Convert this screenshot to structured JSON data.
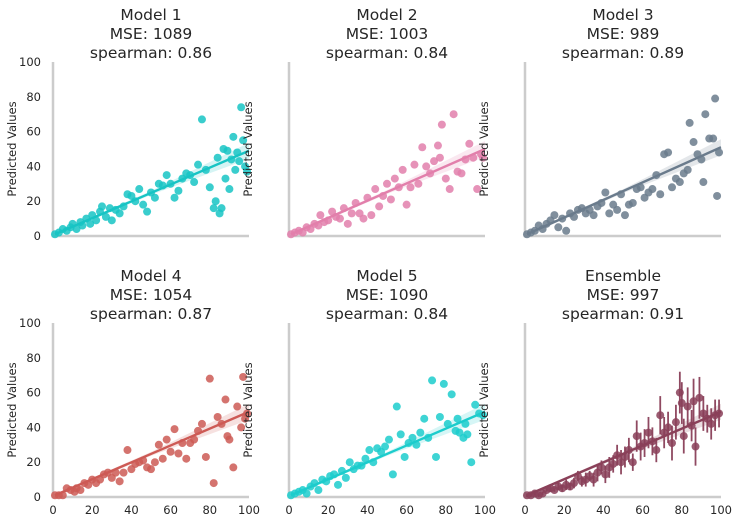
{
  "chart_data": [
    {
      "type": "scatter",
      "title": [
        "Model 1",
        "MSE: 1089",
        "spearman: 0.86"
      ],
      "ylabel": "Predicted Values",
      "xlabel": "",
      "xlim": [
        0,
        100
      ],
      "ylim": [
        0,
        100
      ],
      "yticks": [
        "0",
        "20",
        "40",
        "60",
        "80",
        "100"
      ],
      "xticks": [],
      "show_yticks": true,
      "show_xticks": false,
      "grid": false,
      "color": "#17c4c4",
      "regression": {
        "x": [
          1,
          100
        ],
        "y": [
          1,
          49
        ]
      },
      "points": [
        [
          1,
          1
        ],
        [
          3,
          2
        ],
        [
          5,
          4
        ],
        [
          7,
          3
        ],
        [
          9,
          5
        ],
        [
          10,
          7
        ],
        [
          12,
          4
        ],
        [
          14,
          8
        ],
        [
          15,
          6
        ],
        [
          17,
          10
        ],
        [
          19,
          7
        ],
        [
          20,
          12
        ],
        [
          22,
          9
        ],
        [
          24,
          14
        ],
        [
          25,
          17
        ],
        [
          27,
          11
        ],
        [
          29,
          16
        ],
        [
          30,
          9
        ],
        [
          32,
          15
        ],
        [
          34,
          13
        ],
        [
          36,
          17
        ],
        [
          38,
          24
        ],
        [
          40,
          23
        ],
        [
          42,
          20
        ],
        [
          44,
          27
        ],
        [
          46,
          18
        ],
        [
          48,
          14
        ],
        [
          50,
          25
        ],
        [
          52,
          22
        ],
        [
          54,
          30
        ],
        [
          56,
          29
        ],
        [
          58,
          35
        ],
        [
          60,
          30
        ],
        [
          62,
          22
        ],
        [
          64,
          26
        ],
        [
          66,
          33
        ],
        [
          68,
          36
        ],
        [
          70,
          35
        ],
        [
          72,
          31
        ],
        [
          74,
          41
        ],
        [
          76,
          67
        ],
        [
          78,
          38
        ],
        [
          80,
          28
        ],
        [
          82,
          16
        ],
        [
          83,
          20
        ],
        [
          84,
          45
        ],
        [
          85,
          13
        ],
        [
          86,
          16
        ],
        [
          87,
          50
        ],
        [
          88,
          33
        ],
        [
          89,
          49
        ],
        [
          90,
          27
        ],
        [
          91,
          44
        ],
        [
          92,
          57
        ],
        [
          93,
          38
        ],
        [
          94,
          48
        ],
        [
          95,
          43
        ],
        [
          96,
          74
        ],
        [
          97,
          55
        ],
        [
          98,
          40
        ],
        [
          99,
          37
        ]
      ]
    },
    {
      "type": "scatter",
      "title": [
        "Model 2",
        "MSE: 1003",
        "spearman: 0.84"
      ],
      "ylabel": "Predicted Values",
      "xlabel": "",
      "xlim": [
        0,
        100
      ],
      "ylim": [
        0,
        100
      ],
      "yticks": [],
      "xticks": [],
      "show_yticks": false,
      "show_xticks": false,
      "grid": false,
      "color": "#e27fab",
      "regression": {
        "x": [
          1,
          100
        ],
        "y": [
          1,
          50
        ]
      },
      "points": [
        [
          1,
          1
        ],
        [
          3,
          2
        ],
        [
          5,
          3
        ],
        [
          7,
          2
        ],
        [
          9,
          5
        ],
        [
          11,
          4
        ],
        [
          13,
          7
        ],
        [
          15,
          6
        ],
        [
          16,
          12
        ],
        [
          18,
          8
        ],
        [
          20,
          9
        ],
        [
          22,
          14
        ],
        [
          24,
          11
        ],
        [
          26,
          10
        ],
        [
          28,
          16
        ],
        [
          30,
          7
        ],
        [
          32,
          13
        ],
        [
          34,
          19
        ],
        [
          36,
          13
        ],
        [
          38,
          10
        ],
        [
          40,
          22
        ],
        [
          42,
          12
        ],
        [
          44,
          27
        ],
        [
          46,
          17
        ],
        [
          48,
          23
        ],
        [
          50,
          30
        ],
        [
          52,
          21
        ],
        [
          54,
          33
        ],
        [
          56,
          28
        ],
        [
          58,
          38
        ],
        [
          60,
          18
        ],
        [
          62,
          28
        ],
        [
          64,
          41
        ],
        [
          66,
          30
        ],
        [
          68,
          51
        ],
        [
          70,
          40
        ],
        [
          72,
          36
        ],
        [
          74,
          43
        ],
        [
          76,
          52
        ],
        [
          77,
          45
        ],
        [
          78,
          64
        ],
        [
          80,
          33
        ],
        [
          82,
          27
        ],
        [
          84,
          70
        ],
        [
          86,
          37
        ],
        [
          88,
          36
        ],
        [
          90,
          44
        ],
        [
          92,
          53
        ],
        [
          94,
          45
        ],
        [
          96,
          27
        ],
        [
          98,
          47
        ],
        [
          99,
          45
        ]
      ]
    },
    {
      "type": "scatter",
      "title": [
        "Model 3",
        "MSE: 989",
        "spearman: 0.89"
      ],
      "ylabel": "Predicted Values",
      "xlabel": "",
      "xlim": [
        0,
        100
      ],
      "ylim": [
        0,
        100
      ],
      "yticks": [],
      "xticks": [],
      "show_yticks": false,
      "show_xticks": false,
      "grid": false,
      "color": "#6a7b8c",
      "regression": {
        "x": [
          1,
          100
        ],
        "y": [
          1,
          51
        ]
      },
      "points": [
        [
          1,
          1
        ],
        [
          3,
          2
        ],
        [
          5,
          3
        ],
        [
          7,
          6
        ],
        [
          9,
          4
        ],
        [
          11,
          7
        ],
        [
          13,
          9
        ],
        [
          15,
          12
        ],
        [
          17,
          5
        ],
        [
          19,
          10
        ],
        [
          21,
          3
        ],
        [
          23,
          13
        ],
        [
          25,
          11
        ],
        [
          27,
          15
        ],
        [
          29,
          16
        ],
        [
          31,
          13
        ],
        [
          33,
          15
        ],
        [
          35,
          12
        ],
        [
          37,
          17
        ],
        [
          39,
          19
        ],
        [
          41,
          25
        ],
        [
          43,
          13
        ],
        [
          45,
          18
        ],
        [
          47,
          15
        ],
        [
          49,
          24
        ],
        [
          51,
          12
        ],
        [
          53,
          18
        ],
        [
          55,
          19
        ],
        [
          57,
          27
        ],
        [
          59,
          28
        ],
        [
          61,
          22
        ],
        [
          63,
          25
        ],
        [
          65,
          27
        ],
        [
          67,
          35
        ],
        [
          69,
          24
        ],
        [
          71,
          47
        ],
        [
          73,
          48
        ],
        [
          75,
          28
        ],
        [
          77,
          33
        ],
        [
          79,
          31
        ],
        [
          81,
          36
        ],
        [
          83,
          38
        ],
        [
          84,
          65
        ],
        [
          86,
          54
        ],
        [
          88,
          47
        ],
        [
          90,
          44
        ],
        [
          91,
          31
        ],
        [
          92,
          70
        ],
        [
          94,
          56
        ],
        [
          96,
          56
        ],
        [
          97,
          79
        ],
        [
          98,
          23
        ],
        [
          99,
          48
        ]
      ]
    },
    {
      "type": "scatter",
      "title": [
        "Model 4",
        "MSE: 1054",
        "spearman: 0.87"
      ],
      "ylabel": "Predicted Values",
      "xlabel": "",
      "xlim": [
        0,
        100
      ],
      "ylim": [
        0,
        100
      ],
      "yticks": [
        "0",
        "20",
        "40",
        "60",
        "80",
        "100"
      ],
      "xticks": [
        "0",
        "20",
        "40",
        "60",
        "80",
        "100"
      ],
      "show_yticks": true,
      "show_xticks": true,
      "grid": false,
      "color": "#cd5a55",
      "regression": {
        "x": [
          1,
          100
        ],
        "y": [
          1,
          49
        ]
      },
      "points": [
        [
          1,
          1
        ],
        [
          3,
          1
        ],
        [
          5,
          1
        ],
        [
          7,
          5
        ],
        [
          9,
          4
        ],
        [
          11,
          3
        ],
        [
          12,
          5
        ],
        [
          14,
          4
        ],
        [
          16,
          8
        ],
        [
          18,
          7
        ],
        [
          20,
          10
        ],
        [
          22,
          8
        ],
        [
          24,
          10
        ],
        [
          26,
          13
        ],
        [
          28,
          14
        ],
        [
          30,
          11
        ],
        [
          32,
          14
        ],
        [
          34,
          9
        ],
        [
          36,
          14
        ],
        [
          38,
          27
        ],
        [
          40,
          16
        ],
        [
          42,
          19
        ],
        [
          44,
          20
        ],
        [
          46,
          21
        ],
        [
          48,
          17
        ],
        [
          50,
          16
        ],
        [
          52,
          20
        ],
        [
          54,
          30
        ],
        [
          56,
          22
        ],
        [
          58,
          33
        ],
        [
          60,
          26
        ],
        [
          62,
          39
        ],
        [
          64,
          25
        ],
        [
          66,
          31
        ],
        [
          68,
          22
        ],
        [
          70,
          31
        ],
        [
          72,
          33
        ],
        [
          74,
          38
        ],
        [
          76,
          42
        ],
        [
          78,
          23
        ],
        [
          80,
          68
        ],
        [
          82,
          8
        ],
        [
          84,
          46
        ],
        [
          86,
          42
        ],
        [
          88,
          56
        ],
        [
          89,
          35
        ],
        [
          90,
          33
        ],
        [
          92,
          17
        ],
        [
          94,
          52
        ],
        [
          96,
          40
        ],
        [
          97,
          69
        ],
        [
          98,
          45
        ],
        [
          99,
          48
        ]
      ]
    },
    {
      "type": "scatter",
      "title": [
        "Model 5",
        "MSE: 1090",
        "spearman: 0.84"
      ],
      "ylabel": "Predicted Values",
      "xlabel": "",
      "xlim": [
        0,
        100
      ],
      "ylim": [
        0,
        100
      ],
      "yticks": [],
      "xticks": [
        "0",
        "20",
        "40",
        "60",
        "80",
        "100"
      ],
      "show_yticks": false,
      "show_xticks": true,
      "grid": false,
      "color": "#1ccccc",
      "regression": {
        "x": [
          1,
          100
        ],
        "y": [
          1,
          49
        ]
      },
      "points": [
        [
          1,
          1
        ],
        [
          3,
          2
        ],
        [
          5,
          3
        ],
        [
          7,
          4
        ],
        [
          9,
          2
        ],
        [
          11,
          6
        ],
        [
          13,
          8
        ],
        [
          15,
          4
        ],
        [
          17,
          10
        ],
        [
          19,
          9
        ],
        [
          21,
          12
        ],
        [
          23,
          13
        ],
        [
          25,
          7
        ],
        [
          27,
          15
        ],
        [
          29,
          11
        ],
        [
          31,
          20
        ],
        [
          33,
          16
        ],
        [
          35,
          18
        ],
        [
          37,
          18
        ],
        [
          39,
          22
        ],
        [
          41,
          27
        ],
        [
          43,
          20
        ],
        [
          45,
          28
        ],
        [
          47,
          26
        ],
        [
          49,
          29
        ],
        [
          51,
          33
        ],
        [
          53,
          13
        ],
        [
          55,
          52
        ],
        [
          57,
          36
        ],
        [
          59,
          23
        ],
        [
          61,
          31
        ],
        [
          63,
          34
        ],
        [
          65,
          30
        ],
        [
          67,
          37
        ],
        [
          69,
          45
        ],
        [
          71,
          34
        ],
        [
          73,
          67
        ],
        [
          75,
          23
        ],
        [
          77,
          46
        ],
        [
          79,
          65
        ],
        [
          81,
          42
        ],
        [
          83,
          59
        ],
        [
          85,
          38
        ],
        [
          86,
          45
        ],
        [
          87,
          37
        ],
        [
          89,
          34
        ],
        [
          90,
          42
        ],
        [
          91,
          36
        ],
        [
          93,
          20
        ],
        [
          95,
          53
        ],
        [
          97,
          48
        ],
        [
          99,
          47
        ]
      ]
    },
    {
      "type": "scatter",
      "title": [
        "Ensemble",
        "MSE: 997",
        "spearman: 0.91"
      ],
      "ylabel": "Predicted Values",
      "xlabel": "",
      "xlim": [
        0,
        100
      ],
      "ylim": [
        0,
        100
      ],
      "yticks": [],
      "xticks": [
        "0",
        "20",
        "40",
        "60",
        "80",
        "100"
      ],
      "show_yticks": false,
      "show_xticks": true,
      "grid": false,
      "color": "#8a4059",
      "regression": {
        "x": [
          1,
          100
        ],
        "y": [
          1,
          49
        ]
      },
      "points": [
        [
          1,
          1
        ],
        [
          3,
          1
        ],
        [
          5,
          2
        ],
        [
          7,
          1
        ],
        [
          9,
          2
        ],
        [
          11,
          4
        ],
        [
          13,
          5
        ],
        [
          15,
          4
        ],
        [
          17,
          6
        ],
        [
          19,
          5
        ],
        [
          21,
          7
        ],
        [
          23,
          6
        ],
        [
          25,
          8
        ],
        [
          27,
          12
        ],
        [
          29,
          9
        ],
        [
          31,
          10
        ],
        [
          33,
          12
        ],
        [
          35,
          10
        ],
        [
          37,
          14
        ],
        [
          39,
          17
        ],
        [
          41,
          13
        ],
        [
          43,
          17
        ],
        [
          45,
          19
        ],
        [
          47,
          24
        ],
        [
          49,
          20
        ],
        [
          51,
          23
        ],
        [
          53,
          27
        ],
        [
          55,
          20
        ],
        [
          57,
          35
        ],
        [
          59,
          29
        ],
        [
          61,
          31
        ],
        [
          63,
          37
        ],
        [
          65,
          32
        ],
        [
          67,
          27
        ],
        [
          69,
          47
        ],
        [
          71,
          37
        ],
        [
          73,
          40
        ],
        [
          75,
          31
        ],
        [
          77,
          43
        ],
        [
          79,
          60
        ],
        [
          80,
          54
        ],
        [
          81,
          35
        ],
        [
          83,
          52
        ],
        [
          85,
          41
        ],
        [
          86,
          55
        ],
        [
          87,
          29
        ],
        [
          89,
          57
        ],
        [
          91,
          48
        ],
        [
          93,
          45
        ],
        [
          95,
          42
        ],
        [
          97,
          47
        ],
        [
          99,
          48
        ]
      ],
      "errors": [
        1,
        1,
        1,
        1,
        1,
        1,
        2,
        1,
        2,
        2,
        3,
        2,
        3,
        3,
        3,
        4,
        3,
        4,
        5,
        4,
        5,
        6,
        5,
        6,
        7,
        6,
        7,
        5,
        9,
        8,
        8,
        9,
        8,
        7,
        11,
        9,
        9,
        10,
        10,
        12,
        12,
        10,
        11,
        9,
        13,
        11,
        12,
        10,
        8,
        9,
        9,
        8
      ]
    }
  ]
}
